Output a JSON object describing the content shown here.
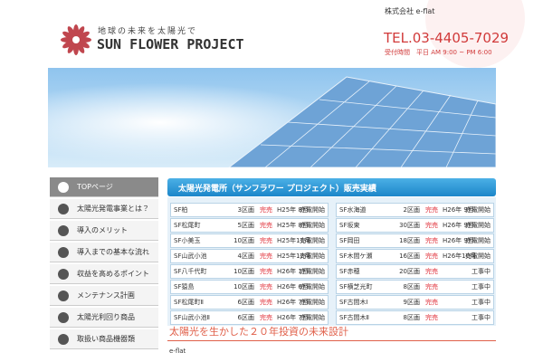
{
  "header": {
    "tagline": "地球の未来を太陽光で",
    "logo": "SUN FLOWER PROJECT",
    "company": "株式会社 e-flat",
    "tel": "TEL.03-4405-7029",
    "hours": "受付時間　平日 AM 9:00 ~ PM 6:00"
  },
  "nav": [
    "TOPページ",
    "太陽光発電事業とは？",
    "導入のメリット",
    "導入までの基本な流れ",
    "収益を高めるポイント",
    "メンテナンス計画",
    "太陽光利回り商品",
    "取扱い商品機器類"
  ],
  "sales": {
    "title": "太陽光発電所（サンフラワー プロジェクト）販売実績",
    "left": [
      [
        "SF柏",
        "3区画",
        "完売",
        "H25年 8月",
        "売電開始"
      ],
      [
        "SF松尾町",
        "5区画",
        "完売",
        "H25年 8月",
        "売電開始"
      ],
      [
        "SF小美玉",
        "10区画",
        "完売",
        "H25年11月",
        "売電開始"
      ],
      [
        "SF山武小池",
        "4区画",
        "完売",
        "H25年12月",
        "売電開始"
      ],
      [
        "SF八千代町",
        "10区画",
        "完売",
        "H26年 1月",
        "売電開始"
      ],
      [
        "SF猿島",
        "10区画",
        "完売",
        "H26年 6月",
        "売電開始"
      ],
      [
        "SF松尾町Ⅱ",
        "6区画",
        "完売",
        "H26年 7月",
        "売電開始"
      ],
      [
        "SF山武小池Ⅱ",
        "6区画",
        "完売",
        "H26年 7月",
        "売電開始"
      ]
    ],
    "right": [
      [
        "SF水海道",
        "2区画",
        "完売",
        "H26年 9月",
        "売電開始"
      ],
      [
        "SF坂東",
        "30区画",
        "完売",
        "H26年 9月",
        "売電開始"
      ],
      [
        "SF岡田",
        "18区画",
        "完売",
        "H26年 9月",
        "売電開始"
      ],
      [
        "SF木間ケ瀬",
        "16区画",
        "完売",
        "H26年10月",
        "売電開始"
      ],
      [
        "SF赤穂",
        "20区画",
        "完売",
        "工事中"
      ],
      [
        "SF横芝光町",
        "8区画",
        "完売",
        "工事中"
      ],
      [
        "SF古間木Ⅰ",
        "9区画",
        "完売",
        "工事中"
      ],
      [
        "SF古間木Ⅱ",
        "8区画",
        "完売",
        "工事中"
      ]
    ]
  },
  "section": {
    "heading": "太陽光を生かした２０年投資の未来設計",
    "text": "e-flat"
  }
}
